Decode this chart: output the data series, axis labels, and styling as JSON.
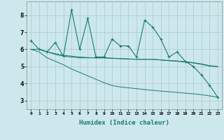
{
  "xlabel": "Humidex (Indice chaleur)",
  "bg_color": "#cce8ec",
  "grid_color": "#b0cdd4",
  "line_color": "#1a7a6e",
  "x_values": [
    0,
    1,
    2,
    3,
    4,
    5,
    6,
    7,
    8,
    9,
    10,
    11,
    12,
    13,
    14,
    15,
    16,
    17,
    18,
    19,
    20,
    21,
    22,
    23
  ],
  "line1": [
    6.5,
    6.0,
    5.85,
    6.4,
    5.6,
    8.3,
    6.0,
    7.8,
    5.55,
    5.55,
    6.6,
    6.2,
    6.2,
    5.55,
    7.7,
    7.3,
    6.6,
    5.55,
    5.85,
    5.3,
    5.0,
    4.5,
    3.9,
    3.2
  ],
  "line2": [
    6.0,
    6.0,
    5.85,
    5.75,
    5.65,
    5.6,
    5.55,
    5.52,
    5.5,
    5.5,
    5.48,
    5.46,
    5.44,
    5.42,
    5.42,
    5.42,
    5.38,
    5.35,
    5.32,
    5.28,
    5.22,
    5.15,
    5.05,
    5.0
  ],
  "line3": [
    6.0,
    6.0,
    5.85,
    5.7,
    5.6,
    5.55,
    5.5,
    5.5,
    5.5,
    5.5,
    5.47,
    5.45,
    5.43,
    5.41,
    5.41,
    5.41,
    5.37,
    5.33,
    5.3,
    5.25,
    5.2,
    5.12,
    5.02,
    4.98
  ],
  "line4": [
    6.0,
    5.85,
    5.5,
    5.3,
    5.1,
    4.85,
    4.65,
    4.45,
    4.25,
    4.05,
    3.88,
    3.8,
    3.75,
    3.7,
    3.65,
    3.6,
    3.56,
    3.52,
    3.48,
    3.44,
    3.4,
    3.35,
    3.28,
    3.2
  ],
  "ylim": [
    2.5,
    8.8
  ],
  "yticks": [
    3,
    4,
    5,
    6,
    7,
    8
  ],
  "xticks": [
    0,
    1,
    2,
    3,
    4,
    5,
    6,
    7,
    8,
    9,
    10,
    11,
    12,
    13,
    14,
    15,
    16,
    17,
    18,
    19,
    20,
    21,
    22,
    23
  ]
}
